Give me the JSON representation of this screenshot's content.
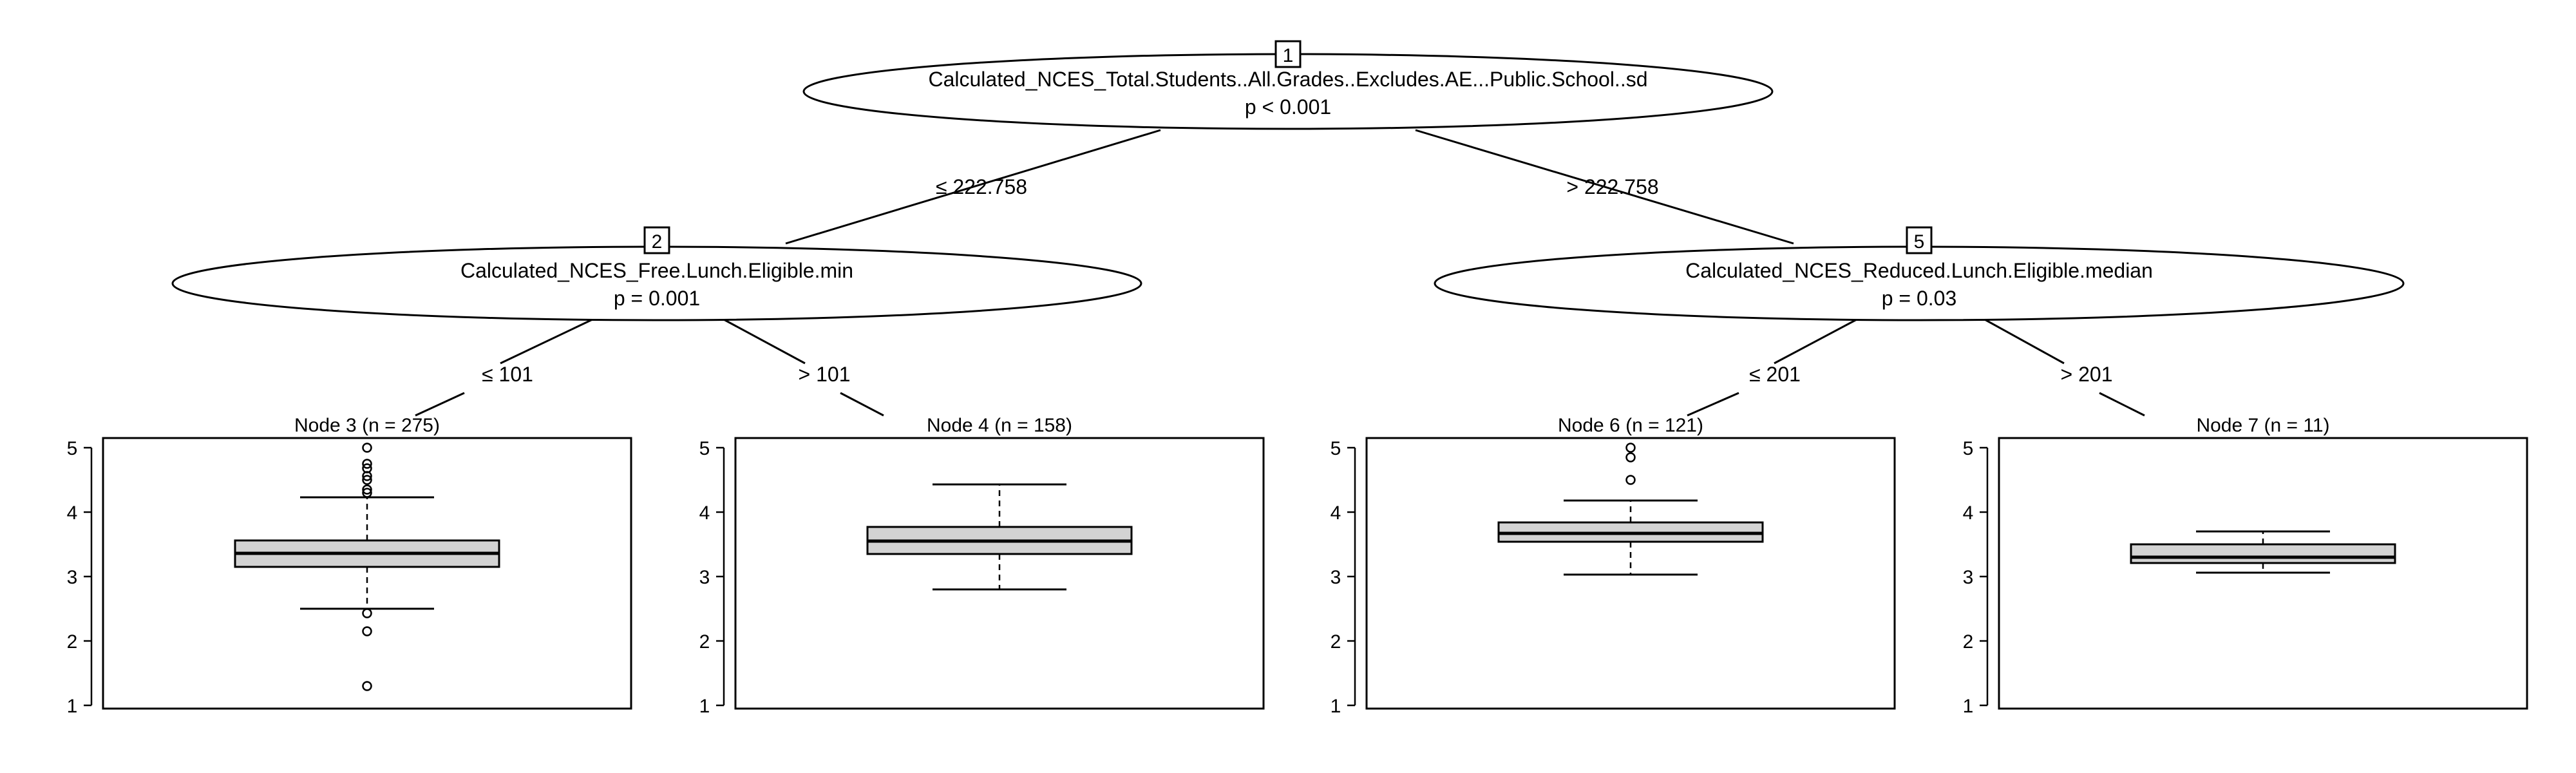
{
  "tree": {
    "inner_nodes": [
      {
        "id": "1",
        "variable": "Calculated_NCES_Total.Students..All.Grades..Excludes.AE...Public.School..sd",
        "p_value": "p < 0.001"
      },
      {
        "id": "2",
        "variable": "Calculated_NCES_Free.Lunch.Eligible.min",
        "p_value": "p = 0.001"
      },
      {
        "id": "5",
        "variable": "Calculated_NCES_Reduced.Lunch.Eligible.median",
        "p_value": "p = 0.03"
      }
    ],
    "edges": [
      {
        "from": "1",
        "to": "2",
        "label": "≤ 222.758"
      },
      {
        "from": "1",
        "to": "5",
        "label": "> 222.758"
      },
      {
        "from": "2",
        "to": "3",
        "label": "≤ 101"
      },
      {
        "from": "2",
        "to": "4",
        "label": "> 101"
      },
      {
        "from": "5",
        "to": "6",
        "label": "≤ 201"
      },
      {
        "from": "5",
        "to": "7",
        "label": "> 201"
      }
    ]
  },
  "chart_data": {
    "type": "boxplot",
    "y_ticks": [
      1,
      2,
      3,
      4,
      5
    ],
    "ylim": [
      0.95,
      5.15
    ],
    "panels": [
      {
        "title": "Node 3 (n = 275)",
        "whisker_low": 2.5,
        "q1": 3.15,
        "median": 3.36,
        "q3": 3.56,
        "whisker_high": 4.23,
        "outliers": [
          5.0,
          4.75,
          4.68,
          4.56,
          4.5,
          4.35,
          4.3,
          2.43,
          2.15,
          1.3
        ]
      },
      {
        "title": "Node 4 (n = 158)",
        "whisker_low": 2.8,
        "q1": 3.35,
        "median": 3.55,
        "q3": 3.77,
        "whisker_high": 4.43,
        "outliers": []
      },
      {
        "title": "Node 6 (n = 121)",
        "whisker_low": 3.03,
        "q1": 3.54,
        "median": 3.67,
        "q3": 3.84,
        "whisker_high": 4.18,
        "outliers": [
          5.0,
          4.85,
          4.5
        ]
      },
      {
        "title": "Node 7 (n = 11)",
        "whisker_low": 3.06,
        "q1": 3.21,
        "median": 3.3,
        "q3": 3.5,
        "whisker_high": 3.7,
        "outliers": []
      }
    ]
  }
}
